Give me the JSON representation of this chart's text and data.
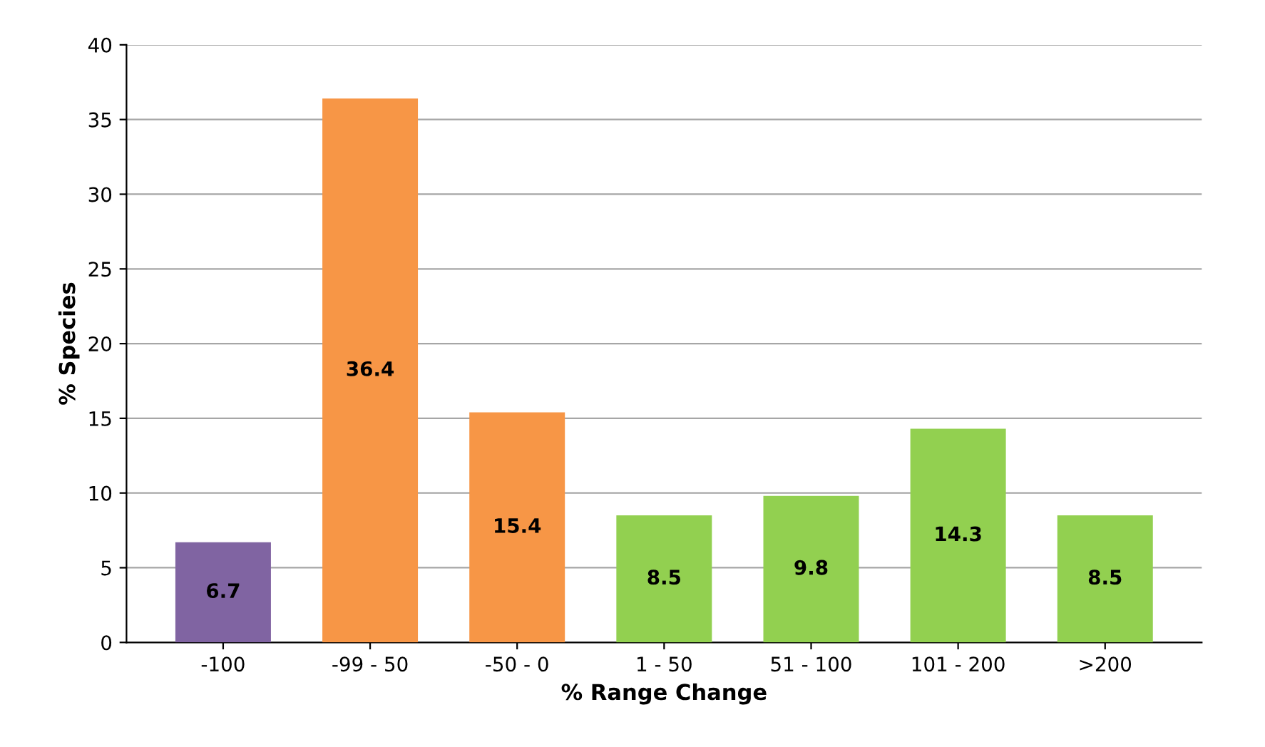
{
  "chart_data": {
    "type": "bar",
    "xlabel": "% Range Change",
    "ylabel": "% Species",
    "categories": [
      "-100",
      "-99 - 50",
      "-50 - 0",
      "1 - 50",
      "51 - 100",
      "101 - 200",
      ">200"
    ],
    "values": [
      6.7,
      36.4,
      15.4,
      8.5,
      9.8,
      14.3,
      8.5
    ],
    "colors": [
      "#8064a2",
      "#f79646",
      "#f79646",
      "#92d050",
      "#92d050",
      "#92d050",
      "#92d050"
    ],
    "ylim": [
      0,
      40
    ],
    "yticks": [
      0,
      5,
      10,
      15,
      20,
      25,
      30,
      35,
      40
    ],
    "grid": "y",
    "data_labels": true
  }
}
